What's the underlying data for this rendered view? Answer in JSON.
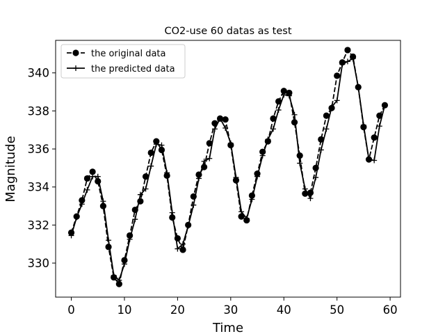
{
  "chart_data": {
    "type": "line",
    "title": "CO2-use 60 datas as test",
    "xlabel": "Time",
    "ylabel": "Magnitude",
    "xlim": [
      -2.95,
      61.95
    ],
    "ylim": [
      328.21,
      341.71
    ],
    "xticks": [
      0,
      10,
      20,
      30,
      40,
      50,
      60
    ],
    "yticks": [
      330,
      332,
      334,
      336,
      338,
      340
    ],
    "grid": false,
    "legend_position": "upper-left",
    "series": [
      {
        "name": "the original data",
        "style": "dashed",
        "marker": "circle",
        "color": "#000000",
        "x": [
          0,
          1,
          2,
          3,
          4,
          5,
          6,
          7,
          8,
          9,
          10,
          11,
          12,
          13,
          14,
          15,
          16,
          17,
          18,
          19,
          20,
          21,
          22,
          23,
          24,
          25,
          26,
          27,
          28,
          29,
          30,
          31,
          32,
          33,
          34,
          35,
          36,
          37,
          38,
          39,
          40,
          41,
          42,
          43,
          44,
          45,
          46,
          47,
          48,
          49,
          50,
          51,
          52,
          53,
          54,
          55,
          56,
          57,
          58,
          59
        ],
        "values": [
          331.6,
          332.45,
          333.3,
          334.45,
          334.8,
          334.3,
          333.0,
          330.85,
          329.25,
          328.9,
          330.15,
          331.45,
          332.8,
          333.25,
          334.55,
          335.8,
          336.4,
          335.95,
          334.6,
          332.4,
          331.3,
          330.7,
          332.0,
          333.5,
          334.65,
          335.05,
          336.3,
          337.35,
          337.6,
          337.55,
          336.2,
          334.35,
          332.45,
          332.25,
          333.55,
          334.7,
          335.85,
          336.4,
          337.6,
          338.5,
          339.05,
          338.95,
          337.4,
          335.65,
          333.65,
          333.7,
          335.0,
          336.5,
          337.75,
          338.15,
          339.85,
          340.55,
          341.2,
          340.85,
          339.25,
          337.15,
          335.45,
          336.6,
          337.75,
          338.3
        ]
      },
      {
        "name": "the predicted data",
        "style": "solid",
        "marker": "plus",
        "color": "#000000",
        "x": [
          0,
          1,
          2,
          3,
          4,
          5,
          6,
          7,
          8,
          9,
          10,
          11,
          12,
          13,
          14,
          15,
          16,
          17,
          18,
          19,
          20,
          21,
          22,
          23,
          24,
          25,
          26,
          27,
          28,
          29,
          30,
          31,
          32,
          33,
          34,
          35,
          36,
          37,
          38,
          39,
          40,
          41,
          42,
          43,
          44,
          45,
          46,
          47,
          48,
          49,
          50,
          51,
          52,
          53,
          54,
          55,
          56,
          57,
          58,
          59
        ],
        "values": [
          331.45,
          332.4,
          333.1,
          333.85,
          334.55,
          334.55,
          333.25,
          331.2,
          329.35,
          329.1,
          329.95,
          331.25,
          332.3,
          333.6,
          333.9,
          335.1,
          336.25,
          336.2,
          334.75,
          332.65,
          330.75,
          331.0,
          331.95,
          333.05,
          334.45,
          335.35,
          335.5,
          337.05,
          337.6,
          337.1,
          336.3,
          334.5,
          332.7,
          332.35,
          333.35,
          334.55,
          335.65,
          336.5,
          337.05,
          338.05,
          338.85,
          338.8,
          337.8,
          335.25,
          333.9,
          333.4,
          334.5,
          335.95,
          337.05,
          338.2,
          338.55,
          340.45,
          340.6,
          340.75,
          339.25,
          337.25,
          335.45,
          335.4,
          337.2,
          338.3
        ]
      }
    ]
  }
}
